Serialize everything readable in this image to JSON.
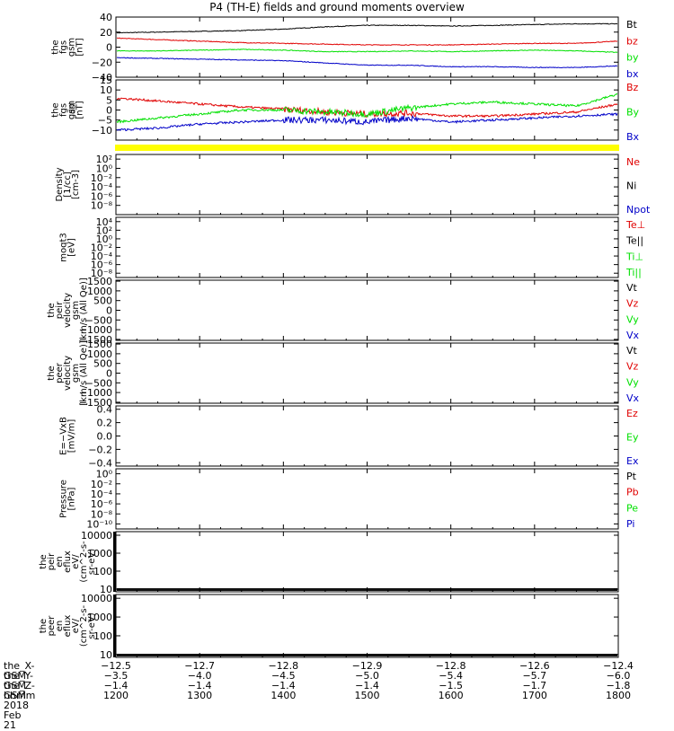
{
  "title": "P4 (TH-E) fields and ground moments overview",
  "colors": {
    "black": "#000000",
    "red": "#e00000",
    "green": "#00e000",
    "blue": "#0000c8",
    "yellow": "#ffff00"
  },
  "chart_data": [
    {
      "type": "line",
      "panel": 1,
      "ylabel": [
        "the",
        "fgs",
        "gsm",
        "[nT]"
      ],
      "ylim": [
        -40,
        40
      ],
      "yticks": [
        "40",
        "20",
        "0",
        "−20",
        "−40"
      ],
      "ytick_values": [
        40,
        20,
        0,
        -20,
        -40
      ],
      "xlim": [
        1200,
        1800
      ],
      "series": [
        {
          "name": "Bt",
          "color": "#000000",
          "x": [
            1200,
            1250,
            1300,
            1350,
            1400,
            1450,
            1500,
            1550,
            1600,
            1650,
            1700,
            1750,
            1800
          ],
          "y": [
            19,
            20,
            21,
            22,
            24,
            27,
            29,
            29,
            28,
            29,
            30,
            31,
            31
          ]
        },
        {
          "name": "bz",
          "color": "#e00000",
          "x": [
            1200,
            1250,
            1300,
            1350,
            1400,
            1450,
            1500,
            1550,
            1600,
            1650,
            1700,
            1750,
            1800
          ],
          "y": [
            12,
            10,
            8,
            6,
            5,
            4,
            3,
            3,
            3,
            4,
            5,
            5,
            8
          ]
        },
        {
          "name": "by",
          "color": "#00e000",
          "x": [
            1200,
            1250,
            1300,
            1350,
            1400,
            1450,
            1500,
            1550,
            1600,
            1650,
            1700,
            1750,
            1800
          ],
          "y": [
            -5,
            -5,
            -4,
            -3,
            -4,
            -6,
            -6,
            -5,
            -6,
            -5,
            -4,
            -5,
            -7
          ]
        },
        {
          "name": "bx",
          "color": "#0000c8",
          "x": [
            1200,
            1250,
            1300,
            1350,
            1400,
            1450,
            1500,
            1550,
            1600,
            1650,
            1700,
            1750,
            1800
          ],
          "y": [
            -14,
            -15,
            -16,
            -17,
            -18,
            -21,
            -24,
            -24,
            -26,
            -26,
            -27,
            -27,
            -25
          ]
        }
      ]
    },
    {
      "type": "line",
      "panel": 2,
      "ylabel": [
        "the",
        "fgs",
        "gsm",
        "[nT]"
      ],
      "ylabel_overlay": "dsl",
      "ylim": [
        -15,
        15
      ],
      "yticks": [
        "15",
        "10",
        "5",
        "0",
        "−5",
        "−10"
      ],
      "ytick_values": [
        15,
        10,
        5,
        0,
        -5,
        -10
      ],
      "xlim": [
        1200,
        1800
      ],
      "series": [
        {
          "name": "Bz",
          "color": "#e00000",
          "x": [
            1200,
            1250,
            1300,
            1350,
            1400,
            1450,
            1500,
            1550,
            1600,
            1650,
            1700,
            1750,
            1800
          ],
          "y": [
            6,
            4.5,
            3,
            1.5,
            0.5,
            -1,
            -2,
            -1.5,
            -3,
            -3,
            -2,
            -1,
            3
          ]
        },
        {
          "name": "By",
          "color": "#00e000",
          "x": [
            1200,
            1250,
            1300,
            1350,
            1400,
            1450,
            1500,
            1550,
            1600,
            1650,
            1700,
            1750,
            1800
          ],
          "y": [
            -6,
            -4,
            -2,
            0,
            0,
            -1,
            -2,
            1,
            3,
            4,
            3,
            2,
            8
          ]
        },
        {
          "name": "Bx",
          "color": "#0000c8",
          "x": [
            1200,
            1250,
            1300,
            1350,
            1400,
            1450,
            1500,
            1550,
            1600,
            1650,
            1700,
            1750,
            1800
          ],
          "y": [
            -10,
            -9,
            -7,
            -6,
            -5,
            -5,
            -6,
            -4,
            -6,
            -5,
            -4,
            -3,
            -2
          ]
        }
      ]
    },
    {
      "type": "line",
      "panel": 3,
      "scale": "log",
      "ylabel": [
        "Density",
        "[1/cc]",
        "[cm-3]"
      ],
      "ylim_exp": [
        -10,
        3
      ],
      "yticks": [
        "10²",
        "10⁰",
        "10⁻²",
        "10⁻⁴",
        "10⁻⁶",
        "10⁻⁸"
      ],
      "ytick_exponents": [
        2,
        0,
        -2,
        -4,
        -6,
        -8
      ],
      "legend": [
        {
          "name": "Ne",
          "color": "#e00000"
        },
        {
          "name": "Ni",
          "color": "#000000"
        },
        {
          "name": "Npot",
          "color": "#0000c8"
        }
      ]
    },
    {
      "type": "line",
      "panel": 4,
      "scale": "log",
      "ylabel": [
        "moqt3",
        "[eV]"
      ],
      "ylim_exp": [
        -9,
        5
      ],
      "yticks": [
        "10⁴",
        "10²",
        "10⁰",
        "10⁻²",
        "10⁻⁴",
        "10⁻⁶",
        "10⁻⁸"
      ],
      "ytick_exponents": [
        4,
        2,
        0,
        -2,
        -4,
        -6,
        -8
      ],
      "legend": [
        {
          "name": "Te⊥",
          "color": "#e00000"
        },
        {
          "name": "Te||",
          "color": "#000000"
        },
        {
          "name": "Ti⊥",
          "color": "#00e000"
        },
        {
          "name": "Ti||",
          "color": "#00e000"
        }
      ]
    },
    {
      "type": "line",
      "panel": 5,
      "ylabel": [
        "the",
        "peir",
        "velocity",
        "gsm",
        "[km/s (All Qe)]"
      ],
      "ylim": [
        -1550,
        1550
      ],
      "yticks": [
        "1500",
        "1000",
        "500",
        "0",
        "−500",
        "−1000",
        "−1500"
      ],
      "ytick_values": [
        1500,
        1000,
        500,
        0,
        -500,
        -1000,
        -1500
      ],
      "legend": [
        {
          "name": "Vt",
          "color": "#000000"
        },
        {
          "name": "Vz",
          "color": "#e00000"
        },
        {
          "name": "Vy",
          "color": "#00e000"
        },
        {
          "name": "Vx",
          "color": "#0000c8"
        }
      ]
    },
    {
      "type": "line",
      "panel": 6,
      "ylabel": [
        "the",
        "peer",
        "velocity",
        "gsm",
        "[km/s (All Qe)]"
      ],
      "ylim": [
        -1550,
        1550
      ],
      "yticks": [
        "1500",
        "1000",
        "500",
        "0",
        "−500",
        "−1000",
        "−1500"
      ],
      "ytick_values": [
        1500,
        1000,
        500,
        0,
        -500,
        -1000,
        -1500
      ],
      "legend": [
        {
          "name": "Vt",
          "color": "#000000"
        },
        {
          "name": "Vz",
          "color": "#e00000"
        },
        {
          "name": "Vy",
          "color": "#00e000"
        },
        {
          "name": "Vx",
          "color": "#0000c8"
        }
      ]
    },
    {
      "type": "line",
      "panel": 7,
      "ylabel": [
        "E=−VxB",
        "[mV/m]"
      ],
      "ylim": [
        -0.45,
        0.45
      ],
      "yticks": [
        "0.4",
        "0.2",
        "0.0",
        "−0.2",
        "−0.4"
      ],
      "ytick_values": [
        0.4,
        0.2,
        0.0,
        -0.2,
        -0.4
      ],
      "legend": [
        {
          "name": "Ez",
          "color": "#e00000"
        },
        {
          "name": "Ey",
          "color": "#00e000"
        },
        {
          "name": "Ex",
          "color": "#0000c8"
        }
      ]
    },
    {
      "type": "line",
      "panel": 8,
      "scale": "log",
      "ylabel": [
        "Pressure",
        "[nPa]"
      ],
      "ylim_exp": [
        -11,
        1
      ],
      "yticks": [
        "10⁰",
        "10⁻²",
        "10⁻⁴",
        "10⁻⁶",
        "10⁻⁸",
        "10⁻¹⁰"
      ],
      "ytick_exponents": [
        0,
        -2,
        -4,
        -6,
        -8,
        -10
      ],
      "legend": [
        {
          "name": "Pt",
          "color": "#000000"
        },
        {
          "name": "Pb",
          "color": "#e00000"
        },
        {
          "name": "Pe",
          "color": "#00e000"
        },
        {
          "name": "Pi",
          "color": "#0000c8"
        }
      ]
    },
    {
      "type": "heatmap",
      "panel": 9,
      "scale": "log",
      "ylabel": [
        "the",
        "peir",
        "en",
        "eflux",
        "eV/",
        "(cm^2-s-",
        "sr-eV)"
      ],
      "ylim_exp": [
        0.85,
        4.2
      ],
      "yticks": [
        "10000",
        "1000",
        "100",
        "10"
      ],
      "ytick_exponents": [
        4,
        3,
        2,
        1
      ]
    },
    {
      "type": "heatmap",
      "panel": 10,
      "scale": "log",
      "ylabel": [
        "the",
        "peer",
        "en",
        "eflux",
        "eV/",
        "(cm^2-s-",
        "sr-eV)"
      ],
      "ylim_exp": [
        0.85,
        4.2
      ],
      "yticks": [
        "10000",
        "1000",
        "100",
        "10"
      ],
      "ytick_exponents": [
        4,
        3,
        2,
        1
      ]
    }
  ],
  "xaxis": {
    "xlim": [
      1200,
      1800
    ],
    "rows": [
      {
        "label": "the_X-GSM",
        "values": [
          "−12.5",
          "−12.7",
          "−12.8",
          "−12.9",
          "−12.8",
          "−12.6",
          "−12.4"
        ]
      },
      {
        "label": "the_Y-GSM",
        "values": [
          "−3.5",
          "−4.0",
          "−4.5",
          "−5.0",
          "−5.4",
          "−5.7",
          "−6.0"
        ]
      },
      {
        "label": "the_Z-GSM",
        "values": [
          "−1.4",
          "−1.4",
          "−1.4",
          "−1.4",
          "−1.5",
          "−1.7",
          "−1.8"
        ]
      },
      {
        "label": "hhmm",
        "values": [
          "1200",
          "1300",
          "1400",
          "1500",
          "1600",
          "1700",
          "1800"
        ]
      }
    ],
    "tick_values": [
      1200,
      1300,
      1400,
      1500,
      1600,
      1700,
      1800
    ],
    "date": "2018 Feb 21"
  }
}
